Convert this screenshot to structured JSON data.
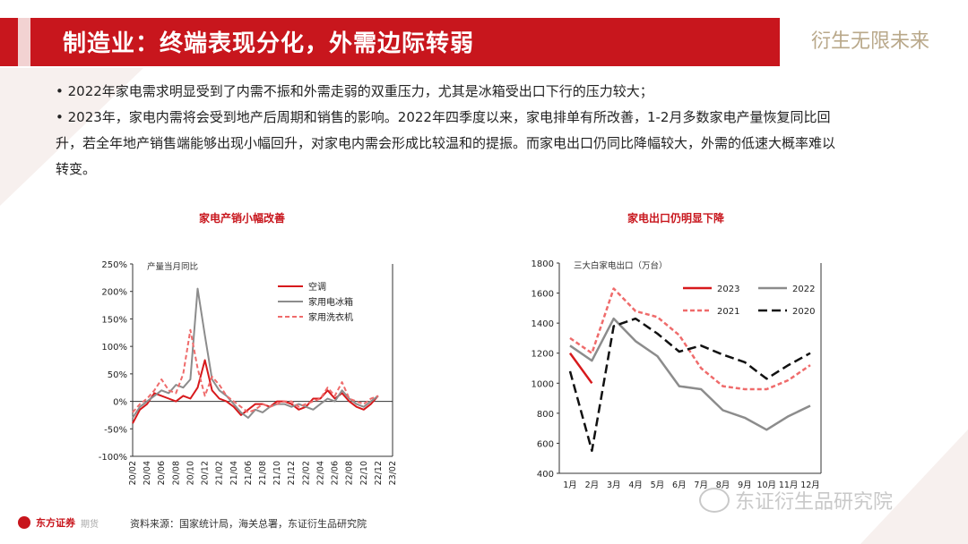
{
  "header": {
    "title": "制造业：终端表现分化，外需边际转弱",
    "slogan": "衍生无限未来"
  },
  "bullets": [
    "• 2022年家电需求明显受到了内需不振和外需走弱的双重压力，尤其是冰箱受出口下行的压力较大；",
    "• 2023年，家电内需将会受到地产后周期和销售的影响。2022年四季度以来，家电排单有所改善，1-2月多数家电产量恢复同比回升，若全年地产销售端能够出现小幅回升，对家电内需会形成比较温和的提振。而家电出口仍同比降幅较大，外需的低速大概率难以转变。"
  ],
  "chart_data": [
    {
      "type": "line",
      "title": "家电产销小幅改善",
      "annotation": "产量当月同比",
      "ylim": [
        -100,
        250
      ],
      "y_ticks": [
        "250%",
        "200%",
        "150%",
        "100%",
        "50%",
        "0%",
        "-50%",
        "-100%"
      ],
      "x_ticks": [
        "20/02",
        "20/04",
        "20/06",
        "20/08",
        "20/10",
        "20/12",
        "21/02",
        "21/04",
        "21/06",
        "21/08",
        "21/10",
        "21/12",
        "22/02",
        "22/04",
        "22/06",
        "22/08",
        "22/10",
        "22/12",
        "23/02"
      ],
      "series": [
        {
          "name": "空调",
          "color": "#d7191c",
          "dash": "",
          "values": [
            -40,
            -15,
            -5,
            15,
            10,
            5,
            0,
            10,
            5,
            25,
            75,
            20,
            5,
            0,
            -10,
            -25,
            -15,
            -5,
            -5,
            -10,
            0,
            0,
            -5,
            -15,
            -10,
            5,
            5,
            20,
            5,
            15,
            0,
            -10,
            -15,
            -5,
            10
          ]
        },
        {
          "name": "家用电冰箱",
          "color": "#8c8c8c",
          "dash": "",
          "values": [
            -30,
            -10,
            0,
            10,
            20,
            15,
            30,
            25,
            40,
            205,
            120,
            40,
            20,
            10,
            -5,
            -20,
            -30,
            -15,
            -20,
            -10,
            -5,
            -5,
            -10,
            -5,
            -10,
            -15,
            -5,
            5,
            0,
            20,
            5,
            -5,
            -10,
            0,
            10
          ]
        },
        {
          "name": "家用洗衣机",
          "color": "#ef6b6b",
          "dash": "5,3",
          "values": [
            -20,
            -5,
            5,
            20,
            40,
            20,
            15,
            50,
            130,
            60,
            10,
            45,
            30,
            10,
            0,
            -10,
            -20,
            -15,
            -5,
            -10,
            -5,
            0,
            0,
            -10,
            -5,
            0,
            5,
            25,
            10,
            35,
            5,
            0,
            -5,
            5,
            10
          ]
        }
      ]
    },
    {
      "type": "line",
      "title": "家电出口仍明显下降",
      "annotation": "三大白家电出口（万台）",
      "ylim": [
        400,
        1800
      ],
      "y_ticks": [
        "1800",
        "1600",
        "1400",
        "1200",
        "1000",
        "800",
        "600",
        "400"
      ],
      "x_ticks": [
        "1月",
        "2月",
        "3月",
        "4月",
        "5月",
        "6月",
        "7月",
        "8月",
        "9月",
        "10月",
        "11月",
        "12月"
      ],
      "series": [
        {
          "name": "2023",
          "color": "#d7191c",
          "dash": "",
          "values": [
            1200,
            1000
          ]
        },
        {
          "name": "2022",
          "color": "#8c8c8c",
          "dash": "",
          "values": [
            1250,
            1150,
            1430,
            1280,
            1180,
            980,
            960,
            820,
            770,
            690,
            780,
            850
          ]
        },
        {
          "name": "2021",
          "color": "#ef6b6b",
          "dash": "5,3",
          "values": [
            1300,
            1200,
            1630,
            1480,
            1440,
            1320,
            1100,
            980,
            960,
            960,
            1020,
            1120
          ]
        },
        {
          "name": "2020",
          "color": "#111111",
          "dash": "10,5",
          "values": [
            1080,
            550,
            1380,
            1430,
            1330,
            1210,
            1250,
            1190,
            1140,
            1030,
            1120,
            1200
          ]
        }
      ]
    }
  ],
  "source": "资料来源：国家统计局，海关总署，东证衍生品研究院",
  "logo": {
    "name": "东方证券",
    "sub": "期货"
  },
  "watermark": "东证衍生品研究院"
}
